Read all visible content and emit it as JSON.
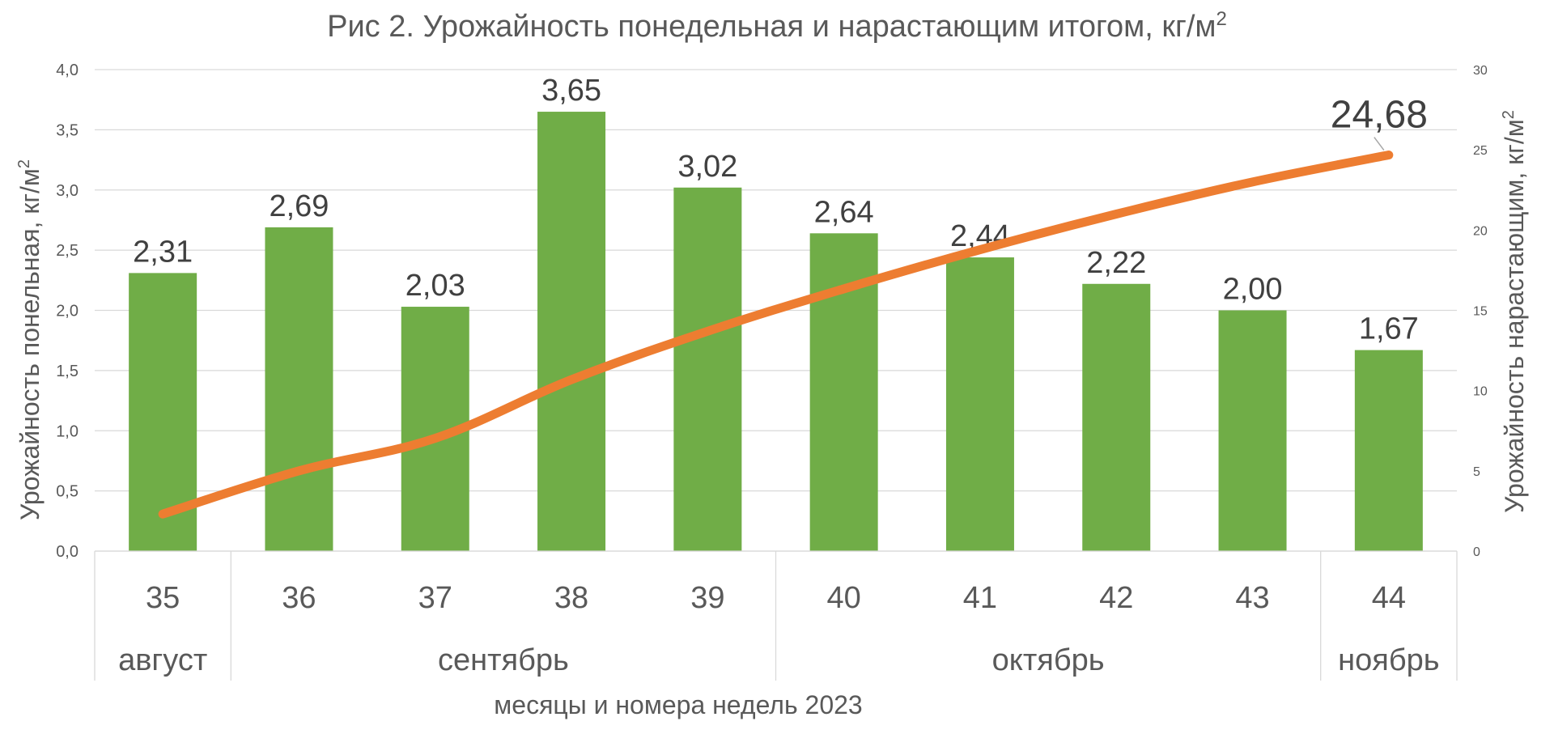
{
  "chart_data": {
    "type": "bar+line",
    "title": "Рис 2. Урожайность понедельная и нарастающим итогом, кг/м",
    "title_sup": "2",
    "categories": [
      "35",
      "36",
      "37",
      "38",
      "39",
      "40",
      "41",
      "42",
      "43",
      "44"
    ],
    "months": [
      {
        "label": "август",
        "span": 1
      },
      {
        "label": "сентябрь",
        "span": 4
      },
      {
        "label": "октябрь",
        "span": 4
      },
      {
        "label": "ноябрь",
        "span": 1
      }
    ],
    "xlabel": "месяцы и номера недель 2023",
    "ylabel_left": "Урожайность понельная, кг/м",
    "ylabel_left_sup": "2",
    "ylabel_right": "Урожайность нарастающим, кг/м",
    "ylabel_right_sup": "2",
    "ylim_left": [
      0,
      4
    ],
    "ylim_right": [
      0,
      30
    ],
    "yticks_left": [
      "0,0",
      "0,5",
      "1,0",
      "1,5",
      "2,0",
      "2,5",
      "3,0",
      "3,5",
      "4,0"
    ],
    "yticks_right": [
      "0",
      "5",
      "10",
      "15",
      "20",
      "25",
      "30"
    ],
    "series": [
      {
        "name": "Урожайность понедельная",
        "type": "bar",
        "axis": "left",
        "color": "#70ad47",
        "values": [
          2.31,
          2.69,
          2.03,
          3.65,
          3.02,
          2.64,
          2.44,
          2.22,
          2.0,
          1.67
        ],
        "labels": [
          "2,31",
          "2,69",
          "2,03",
          "3,65",
          "3,02",
          "2,64",
          "2,44",
          "2,22",
          "2,00",
          "1,67"
        ]
      },
      {
        "name": "Урожайность нарастающим итогом",
        "type": "line",
        "axis": "right",
        "color": "#ed7d31",
        "values": [
          2.31,
          5.0,
          7.03,
          10.68,
          13.7,
          16.34,
          18.78,
          21.0,
          23.0,
          24.68
        ],
        "end_label": "24,68"
      }
    ],
    "grid": true
  }
}
